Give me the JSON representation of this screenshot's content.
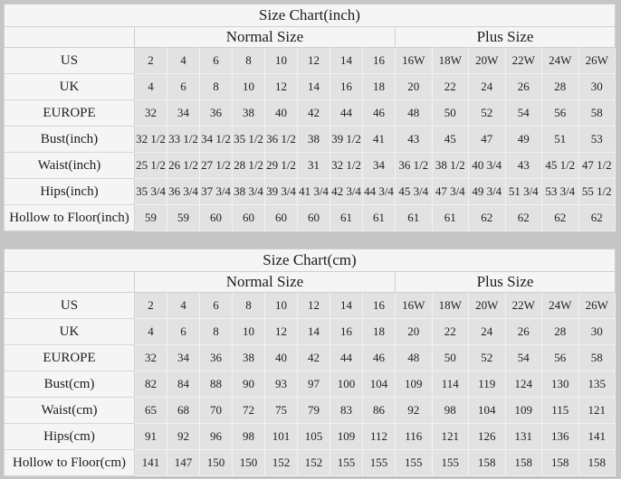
{
  "page": {
    "background_color": "#c5c5c5",
    "table_background": "#f5f5f5",
    "data_cell_background": "#e2e2e2",
    "text_color": "#1c1c1c"
  },
  "chart_data": [
    {
      "type": "table",
      "title": "Size Chart(inch)",
      "groups": [
        {
          "label": "Normal Size",
          "span": 8
        },
        {
          "label": "Plus Size",
          "span": 6
        }
      ],
      "rows": [
        {
          "label": "US",
          "values": [
            "2",
            "4",
            "6",
            "8",
            "10",
            "12",
            "14",
            "16",
            "16W",
            "18W",
            "20W",
            "22W",
            "24W",
            "26W"
          ]
        },
        {
          "label": "UK",
          "values": [
            "4",
            "6",
            "8",
            "10",
            "12",
            "14",
            "16",
            "18",
            "20",
            "22",
            "24",
            "26",
            "28",
            "30"
          ]
        },
        {
          "label": "EUROPE",
          "values": [
            "32",
            "34",
            "36",
            "38",
            "40",
            "42",
            "44",
            "46",
            "48",
            "50",
            "52",
            "54",
            "56",
            "58"
          ]
        },
        {
          "label": "Bust(inch)",
          "values": [
            "32 1/2",
            "33 1/2",
            "34 1/2",
            "35 1/2",
            "36 1/2",
            "38",
            "39 1/2",
            "41",
            "43",
            "45",
            "47",
            "49",
            "51",
            "53"
          ]
        },
        {
          "label": "Waist(inch)",
          "values": [
            "25 1/2",
            "26 1/2",
            "27 1/2",
            "28 1/2",
            "29 1/2",
            "31",
            "32 1/2",
            "34",
            "36 1/2",
            "38 1/2",
            "40 3/4",
            "43",
            "45 1/2",
            "47 1/2"
          ]
        },
        {
          "label": "Hips(inch)",
          "values": [
            "35 3/4",
            "36 3/4",
            "37 3/4",
            "38 3/4",
            "39 3/4",
            "41 3/4",
            "42 3/4",
            "44 3/4",
            "45 3/4",
            "47 3/4",
            "49 3/4",
            "51 3/4",
            "53 3/4",
            "55 1/2"
          ]
        },
        {
          "label": "Hollow to Floor(inch)",
          "values": [
            "59",
            "59",
            "60",
            "60",
            "60",
            "60",
            "61",
            "61",
            "61",
            "61",
            "62",
            "62",
            "62",
            "62"
          ]
        }
      ]
    },
    {
      "type": "table",
      "title": "Size Chart(cm)",
      "groups": [
        {
          "label": "Normal Size",
          "span": 8
        },
        {
          "label": "Plus Size",
          "span": 6
        }
      ],
      "rows": [
        {
          "label": "US",
          "values": [
            "2",
            "4",
            "6",
            "8",
            "10",
            "12",
            "14",
            "16",
            "16W",
            "18W",
            "20W",
            "22W",
            "24W",
            "26W"
          ]
        },
        {
          "label": "UK",
          "values": [
            "4",
            "6",
            "8",
            "10",
            "12",
            "14",
            "16",
            "18",
            "20",
            "22",
            "24",
            "26",
            "28",
            "30"
          ]
        },
        {
          "label": "EUROPE",
          "values": [
            "32",
            "34",
            "36",
            "38",
            "40",
            "42",
            "44",
            "46",
            "48",
            "50",
            "52",
            "54",
            "56",
            "58"
          ]
        },
        {
          "label": "Bust(cm)",
          "values": [
            "82",
            "84",
            "88",
            "90",
            "93",
            "97",
            "100",
            "104",
            "109",
            "114",
            "119",
            "124",
            "130",
            "135"
          ]
        },
        {
          "label": "Waist(cm)",
          "values": [
            "65",
            "68",
            "70",
            "72",
            "75",
            "79",
            "83",
            "86",
            "92",
            "98",
            "104",
            "109",
            "115",
            "121"
          ]
        },
        {
          "label": "Hips(cm)",
          "values": [
            "91",
            "92",
            "96",
            "98",
            "101",
            "105",
            "109",
            "112",
            "116",
            "121",
            "126",
            "131",
            "136",
            "141"
          ]
        },
        {
          "label": "Hollow to Floor(cm)",
          "values": [
            "141",
            "147",
            "150",
            "150",
            "152",
            "152",
            "155",
            "155",
            "155",
            "155",
            "158",
            "158",
            "158",
            "158"
          ]
        }
      ]
    }
  ]
}
